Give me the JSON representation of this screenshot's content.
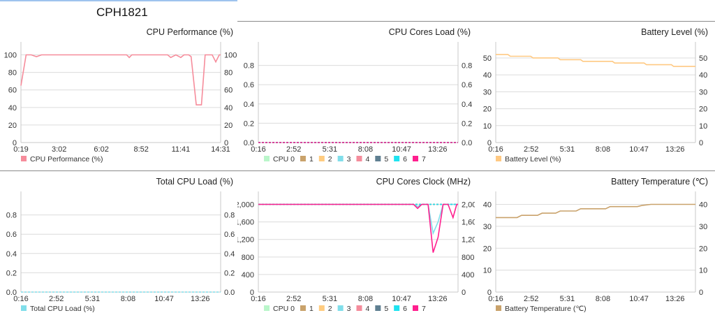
{
  "device_title": "CPH1821",
  "chart_data": [
    {
      "type": "line",
      "title": "CPU Performance (%)",
      "xlim": [
        19,
        871
      ],
      "xticks": [
        [
          19,
          "0:19"
        ],
        [
          182,
          "3:02"
        ],
        [
          362,
          "6:02"
        ],
        [
          532,
          "8:52"
        ],
        [
          701,
          "11:41"
        ],
        [
          871,
          "14:31"
        ]
      ],
      "ylim": [
        0,
        110
      ],
      "yticks": [
        [
          0,
          "0"
        ],
        [
          20,
          "20"
        ],
        [
          40,
          "40"
        ],
        [
          60,
          "60"
        ],
        [
          80,
          "80"
        ],
        [
          100,
          "100"
        ]
      ],
      "series": [
        {
          "name": "CPU Performance (%)",
          "color": "#f68c9b",
          "points": [
            [
              19,
              65
            ],
            [
              41,
              100
            ],
            [
              63,
              100
            ],
            [
              85,
              98
            ],
            [
              107,
              100
            ],
            [
              470,
              100
            ],
            [
              481,
              97
            ],
            [
              492,
              100
            ],
            [
              645,
              100
            ],
            [
              658,
              97
            ],
            [
              680,
              100
            ],
            [
              701,
              97
            ],
            [
              715,
              100
            ],
            [
              735,
              100
            ],
            [
              745,
              98
            ],
            [
              767,
              43
            ],
            [
              789,
              43
            ],
            [
              805,
              100
            ],
            [
              835,
              100
            ],
            [
              850,
              92
            ],
            [
              865,
              100
            ],
            [
              871,
              100
            ]
          ]
        }
      ]
    },
    {
      "type": "line",
      "title": "CPU Cores Load (%)",
      "xlim": [
        16,
        896
      ],
      "xticks": [
        [
          16,
          "0:16"
        ],
        [
          172,
          "2:52"
        ],
        [
          331,
          "5:31"
        ],
        [
          488,
          "8:08"
        ],
        [
          647,
          "10:47"
        ],
        [
          806,
          "13:26"
        ]
      ],
      "ylim": [
        0,
        1
      ],
      "yticks": [
        [
          0,
          "0.0"
        ],
        [
          0.2,
          "0.2"
        ],
        [
          0.4,
          "0.4"
        ],
        [
          0.6,
          "0.6"
        ],
        [
          0.8,
          "0.8"
        ]
      ],
      "series": [
        {
          "name": "CPU 0",
          "color": "#b9f6ca",
          "points": [
            [
              16,
              0
            ],
            [
              896,
              0
            ]
          ]
        },
        {
          "name": "1",
          "color": "#c9a26b",
          "points": [
            [
              16,
              0
            ],
            [
              896,
              0
            ]
          ]
        },
        {
          "name": "2",
          "color": "#ffcc80",
          "points": [
            [
              16,
              0
            ],
            [
              896,
              0
            ]
          ]
        },
        {
          "name": "3",
          "color": "#80deea",
          "points": [
            [
              16,
              0
            ],
            [
              896,
              0
            ]
          ]
        },
        {
          "name": "4",
          "color": "#f48c9b",
          "points": [
            [
              16,
              0
            ],
            [
              896,
              0
            ]
          ]
        },
        {
          "name": "5",
          "color": "#5f7f91",
          "points": [
            [
              16,
              0
            ],
            [
              896,
              0
            ]
          ]
        },
        {
          "name": "6",
          "color": "#1ee3f0",
          "points": [
            [
              16,
              0
            ],
            [
              896,
              0
            ]
          ]
        },
        {
          "name": "7",
          "color": "#ff1f8e",
          "points": [
            [
              16,
              0
            ],
            [
              896,
              0
            ]
          ]
        }
      ]
    },
    {
      "type": "line",
      "title": "Battery Level (%)",
      "xlim": [
        16,
        896
      ],
      "xticks": [
        [
          16,
          "0:16"
        ],
        [
          172,
          "2:52"
        ],
        [
          331,
          "5:31"
        ],
        [
          488,
          "8:08"
        ],
        [
          647,
          "10:47"
        ],
        [
          806,
          "13:26"
        ]
      ],
      "ylim": [
        0,
        57
      ],
      "yticks": [
        [
          0,
          "0"
        ],
        [
          10,
          "10"
        ],
        [
          20,
          "20"
        ],
        [
          30,
          "30"
        ],
        [
          40,
          "40"
        ],
        [
          50,
          "50"
        ]
      ],
      "series": [
        {
          "name": "Battery Level (%)",
          "color": "#ffc982",
          "points": [
            [
              16,
              52
            ],
            [
              70,
              52
            ],
            [
              80,
              51
            ],
            [
              170,
              51
            ],
            [
              180,
              50
            ],
            [
              290,
              50
            ],
            [
              300,
              49
            ],
            [
              390,
              49
            ],
            [
              400,
              48
            ],
            [
              530,
              48
            ],
            [
              540,
              47
            ],
            [
              670,
              47
            ],
            [
              680,
              46
            ],
            [
              790,
              46
            ],
            [
              800,
              45
            ],
            [
              896,
              45
            ]
          ]
        }
      ]
    },
    {
      "type": "line",
      "title": "Total CPU Load (%)",
      "xlim": [
        16,
        896
      ],
      "xticks": [
        [
          16,
          "0:16"
        ],
        [
          172,
          "2:52"
        ],
        [
          331,
          "5:31"
        ],
        [
          488,
          "8:08"
        ],
        [
          647,
          "10:47"
        ],
        [
          806,
          "13:26"
        ]
      ],
      "ylim": [
        0,
        1
      ],
      "yticks": [
        [
          0,
          "0.0"
        ],
        [
          0.2,
          "0.2"
        ],
        [
          0.4,
          "0.4"
        ],
        [
          0.6,
          "0.6"
        ],
        [
          0.8,
          "0.8"
        ]
      ],
      "series": [
        {
          "name": "Total CPU Load (%)",
          "color": "#80deea",
          "points": [
            [
              16,
              0
            ],
            [
              896,
              0
            ]
          ]
        }
      ]
    },
    {
      "type": "line",
      "title": "CPU Cores Clock (MHz)",
      "xlim": [
        16,
        896
      ],
      "xticks": [
        [
          16,
          "0:16"
        ],
        [
          172,
          "2:52"
        ],
        [
          331,
          "5:31"
        ],
        [
          488,
          "8:08"
        ],
        [
          647,
          "10:47"
        ],
        [
          806,
          "13:26"
        ]
      ],
      "ylim": [
        0,
        2200
      ],
      "yticks": [
        [
          0,
          "0"
        ],
        [
          400,
          "400"
        ],
        [
          800,
          "800"
        ],
        [
          1200,
          "1,200"
        ],
        [
          1600,
          "1,600"
        ],
        [
          2000,
          "2,000"
        ]
      ],
      "series": [
        {
          "name": "CPU 0",
          "color": "#b9f6ca",
          "points": [
            [
              16,
              2000
            ],
            [
              896,
              2000
            ]
          ]
        },
        {
          "name": "1",
          "color": "#c9a26b",
          "points": [
            [
              16,
              2000
            ],
            [
              896,
              2000
            ]
          ]
        },
        {
          "name": "2",
          "color": "#ffcc80",
          "points": [
            [
              16,
              2000
            ],
            [
              896,
              2000
            ]
          ]
        },
        {
          "name": "3",
          "color": "#80deea",
          "points": [
            [
              16,
              2000
            ],
            [
              700,
              2000
            ],
            [
              718,
              1950
            ],
            [
              736,
              2000
            ],
            [
              764,
              2000
            ],
            [
              786,
              1340
            ],
            [
              808,
              1600
            ],
            [
              830,
              2000
            ],
            [
              896,
              2000
            ]
          ]
        },
        {
          "name": "4",
          "color": "#f48c9b",
          "points": [
            [
              16,
              2000
            ],
            [
              896,
              2000
            ]
          ]
        },
        {
          "name": "5",
          "color": "#5f7f91",
          "points": [
            [
              16,
              2000
            ],
            [
              896,
              2000
            ]
          ]
        },
        {
          "name": "6",
          "color": "#1ee3f0",
          "points": [
            [
              16,
              2000
            ],
            [
              896,
              2000
            ]
          ]
        },
        {
          "name": "7",
          "color": "#ff1f8e",
          "points": [
            [
              16,
              2000
            ],
            [
              700,
              2000
            ],
            [
              718,
              1910
            ],
            [
              736,
              2000
            ],
            [
              764,
              2000
            ],
            [
              786,
              900
            ],
            [
              808,
              1250
            ],
            [
              830,
              2000
            ],
            [
              852,
              2000
            ],
            [
              874,
              1700
            ],
            [
              890,
              2000
            ],
            [
              896,
              2000
            ]
          ]
        }
      ]
    },
    {
      "type": "line",
      "title": "Battery Temperature (℃)",
      "xlim": [
        16,
        896
      ],
      "xticks": [
        [
          16,
          "0:16"
        ],
        [
          172,
          "2:52"
        ],
        [
          331,
          "5:31"
        ],
        [
          488,
          "8:08"
        ],
        [
          647,
          "10:47"
        ],
        [
          806,
          "13:26"
        ]
      ],
      "ylim": [
        0,
        44
      ],
      "yticks": [
        [
          0,
          "0"
        ],
        [
          10,
          "10"
        ],
        [
          20,
          "20"
        ],
        [
          30,
          "30"
        ],
        [
          40,
          "40"
        ]
      ],
      "series": [
        {
          "name": "Battery Temperature (℃)",
          "color": "#c9a26b",
          "points": [
            [
              16,
              34
            ],
            [
              110,
              34
            ],
            [
              130,
              35
            ],
            [
              200,
              35
            ],
            [
              220,
              36
            ],
            [
              280,
              36
            ],
            [
              300,
              37
            ],
            [
              370,
              37
            ],
            [
              390,
              38
            ],
            [
              500,
              38
            ],
            [
              520,
              39
            ],
            [
              640,
              39
            ],
            [
              660,
              39.5
            ],
            [
              700,
              40
            ],
            [
              896,
              40
            ]
          ]
        }
      ]
    }
  ]
}
